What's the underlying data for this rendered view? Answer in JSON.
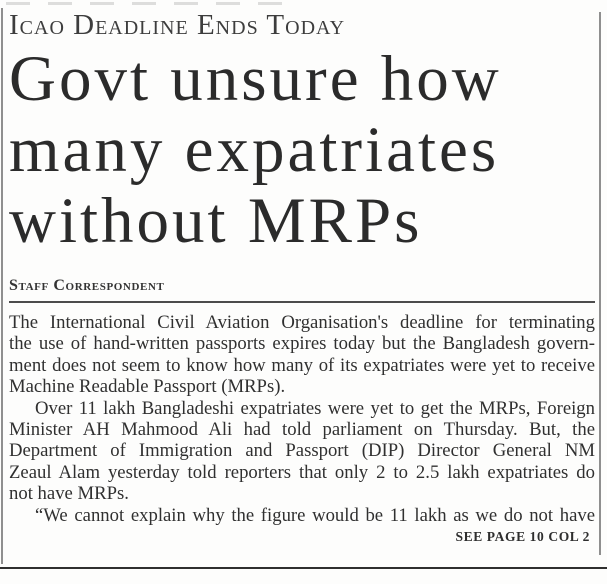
{
  "article": {
    "kicker": "Icao Deadline Ends Today",
    "headline_lines": [
      "Govt unsure how",
      "many expatriates",
      "without MRPs"
    ],
    "byline": "Staff Correspondent",
    "paragraphs": [
      {
        "lines": [
          "The International Civil Aviation Organisation's deadline for terminating",
          "the use of hand-written passports expires today but the Bangladesh govern-",
          "ment does not seem to know how many of its expatriates were yet to receive",
          "Machine Readable Passport (MRPs)."
        ]
      },
      {
        "lines": [
          "Over 11 lakh Bangladeshi expatriates were yet to get the MRPs, Foreign",
          "Minister AH Mahmood Ali had told parliament on Thursday. But, the",
          "Department of Immigration and Passport (DIP) Director General NM",
          "Zeaul Alam yesterday told reporters that only 2 to 2.5 lakh expatriates do",
          "not have MRPs."
        ]
      },
      {
        "lines": [
          "“We cannot explain why the figure would be 11 lakh as we do not have"
        ]
      }
    ],
    "continuation": "SEE PAGE 10 COL 2"
  },
  "colors": {
    "background": "#fdfdfc",
    "body_text": "#303030",
    "headline_text": "#2b2b2b",
    "byline_rule": "#4c4c4c",
    "scan_border": "#8f8f8f",
    "bottom_rule": "#2f2f2f"
  }
}
